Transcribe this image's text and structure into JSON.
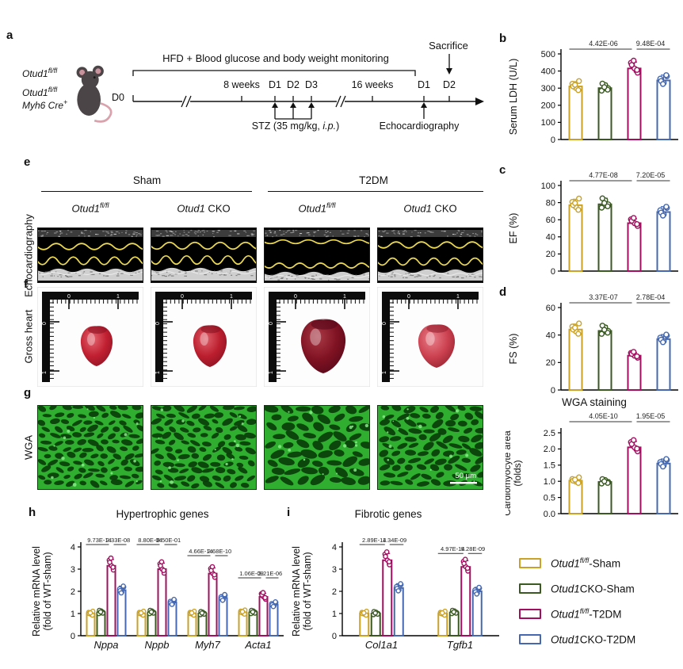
{
  "panel_letters": {
    "a": "a",
    "b": "b",
    "c": "c",
    "d": "d",
    "e": "e",
    "f": "f",
    "g": "g",
    "h": "h",
    "i": "i"
  },
  "colors": {
    "group_colors": [
      "#C9A227",
      "#3B5A22",
      "#A11060",
      "#4568B0"
    ],
    "echo_trace": "#ECD94E",
    "wga_membrane": "#2FAE2F",
    "wga_cell": "#0A3D0A"
  },
  "timeline": {
    "monitor_label": "HFD + Blood glucose and body weight monitoring",
    "sacrifice_label": "Sacrifice",
    "d0_label": "D0",
    "tick_labels": [
      "8 weeks",
      "D1",
      "D2",
      "D3",
      "16 weeks",
      "D1",
      "D2"
    ],
    "stz_pre": "STZ (35 mg/kg, ",
    "stz_ip": "i.p.",
    "stz_post": ")",
    "echo_label": "Echocardiography",
    "genotype_line1": {
      "base": "Otud1",
      "sup": "fl/fl"
    },
    "genotype_line2": {
      "base": "Otud1",
      "sup": "fl/fl"
    },
    "genotype_line3": {
      "base": "Myh6 Cre",
      "sup": "+"
    }
  },
  "legend": {
    "items": [
      {
        "base": "Otud1",
        "sup": "fl/fl",
        "rest": "-Sham",
        "color": "#C9A227"
      },
      {
        "base": "Otud1",
        "sup": "",
        "rest": "CKO-Sham",
        "color": "#3B5A22"
      },
      {
        "base": "Otud1",
        "sup": "fl/fl",
        "rest": "-T2DM",
        "color": "#A11060"
      },
      {
        "base": "Otud1",
        "sup": "",
        "rest": "CKO-T2DM",
        "color": "#4568B0"
      }
    ]
  },
  "image_panels": {
    "group_headers": [
      "Sham",
      "T2DM"
    ],
    "col_labels": [
      {
        "base": "Otud1",
        "sup": "fl/fl",
        "rest": ""
      },
      {
        "base": "Otud1",
        "sup": "",
        "rest": " CKO"
      },
      {
        "base": "Otud1",
        "sup": "fl/fl",
        "rest": ""
      },
      {
        "base": "Otud1",
        "sup": "",
        "rest": " CKO"
      }
    ],
    "row_labels": [
      "Echocardiography",
      "Gross heart",
      "WGA"
    ],
    "scale_bar_label": "50 μm"
  },
  "charts": {
    "b": {
      "type": "bar",
      "ylabel": "Serum LDH (U/L)",
      "ymax": 500,
      "yticks": [
        "0",
        "100",
        "200",
        "300",
        "400",
        "500"
      ],
      "values": [
        310,
        300,
        415,
        345
      ],
      "pvalues": [
        "4.42E-06",
        "9.48E-04"
      ]
    },
    "c": {
      "type": "bar",
      "ylabel": "EF (%)",
      "ymax": 100,
      "yticks": [
        "0",
        "20",
        "40",
        "60",
        "80",
        "100"
      ],
      "values": [
        77,
        78,
        56,
        69
      ],
      "pvalues": [
        "4.77E-08",
        "7.20E-05"
      ]
    },
    "d": {
      "type": "bar",
      "ylabel": "FS (%)",
      "ymax": 60,
      "yticks": [
        "0",
        "20",
        "40",
        "60"
      ],
      "values": [
        44,
        43,
        25,
        37
      ],
      "pvalues": [
        "3.37E-07",
        "2.78E-04"
      ]
    },
    "wga": {
      "type": "bar",
      "title": "WGA staining",
      "ylabel_line1": "Cardiomyocyte area",
      "ylabel_line2": "(folds)",
      "ymax": 2.5,
      "yticks": [
        "0.0",
        "0.5",
        "1.0",
        "1.5",
        "2.0",
        "2.5"
      ],
      "values": [
        1.02,
        0.98,
        2.05,
        1.55
      ],
      "pvalues": [
        "4.05E-10",
        "1.95E-05"
      ]
    },
    "h": {
      "type": "grouped-bar",
      "title": "Hypertrophic genes",
      "ylabel_line1": "Relative mRNA level",
      "ylabel_line2": "(fold of WT-sham)",
      "ymax": 4,
      "yticks": [
        "0",
        "1",
        "2",
        "3",
        "4"
      ],
      "groups": [
        {
          "gene": "Nppa",
          "values": [
            1.0,
            1.05,
            3.15,
            2.05
          ],
          "pvalues": [
            "9.73E-14",
            "2.33E-08"
          ],
          "prow": 0
        },
        {
          "gene": "Nppb",
          "values": [
            1.0,
            1.05,
            3.0,
            1.5
          ],
          "pvalues": [
            "8.80E-04",
            "8.50E-01"
          ],
          "prow": 0
        },
        {
          "gene": "Myh7",
          "values": [
            1.0,
            1.0,
            2.8,
            1.7
          ],
          "pvalues": [
            "4.66E-14",
            "2.68E-10"
          ],
          "prow": 1
        },
        {
          "gene": "Acta1",
          "values": [
            1.05,
            1.05,
            1.75,
            1.4
          ],
          "pvalues": [
            "1.06E-09",
            "3.21E-06"
          ],
          "prow": 3
        }
      ]
    },
    "i": {
      "type": "grouped-bar",
      "title": "Fibrotic genes",
      "ylabel_line1": "Relative mRNA level",
      "ylabel_line2": "(fold of WT-sham)",
      "ymax": 4,
      "yticks": [
        "0",
        "1",
        "2",
        "3",
        "4"
      ],
      "groups": [
        {
          "gene": "Col1a1",
          "values": [
            1.0,
            1.0,
            3.4,
            2.15
          ],
          "pvalues": [
            "2.89E-14",
            "1.34E-09"
          ],
          "prow": 0
        },
        {
          "gene": "Tgfb1",
          "values": [
            1.0,
            1.05,
            3.1,
            2.0
          ],
          "pvalues": [
            "4.97E-14",
            "9.28E-09"
          ],
          "prow": 0.8
        }
      ]
    }
  },
  "echo_traces": [
    {
      "top": 24,
      "amp": 4.0,
      "bot": 42,
      "bamp": 5.0,
      "band": 54
    },
    {
      "top": 23,
      "amp": 4.5,
      "bot": 41,
      "bamp": 5.5,
      "band": 53
    },
    {
      "top": 18,
      "amp": 2.4,
      "bot": 48,
      "bamp": 3.2,
      "band": 58
    },
    {
      "top": 22,
      "amp": 4.0,
      "bot": 43,
      "bamp": 4.6,
      "band": 55
    }
  ],
  "hearts": [
    {
      "w": 40,
      "h": 52,
      "color": "#c12031",
      "light": "#e36570",
      "dark": "#8c1424"
    },
    {
      "w": 42,
      "h": 54,
      "color": "#bb1e2e",
      "light": "#df5f6a",
      "dark": "#871322"
    },
    {
      "w": 56,
      "h": 70,
      "color": "#7f1222",
      "light": "#a93844",
      "dark": "#55091a"
    },
    {
      "w": 46,
      "h": 56,
      "color": "#cc4150",
      "light": "#e87f8a",
      "dark": "#942230"
    }
  ],
  "wga_cells": [
    {
      "rx": 6.0,
      "ry": 3.0
    },
    {
      "rx": 6.2,
      "ry": 3.1
    },
    {
      "rx": 8.6,
      "ry": 4.3
    },
    {
      "rx": 7.0,
      "ry": 3.4
    }
  ]
}
